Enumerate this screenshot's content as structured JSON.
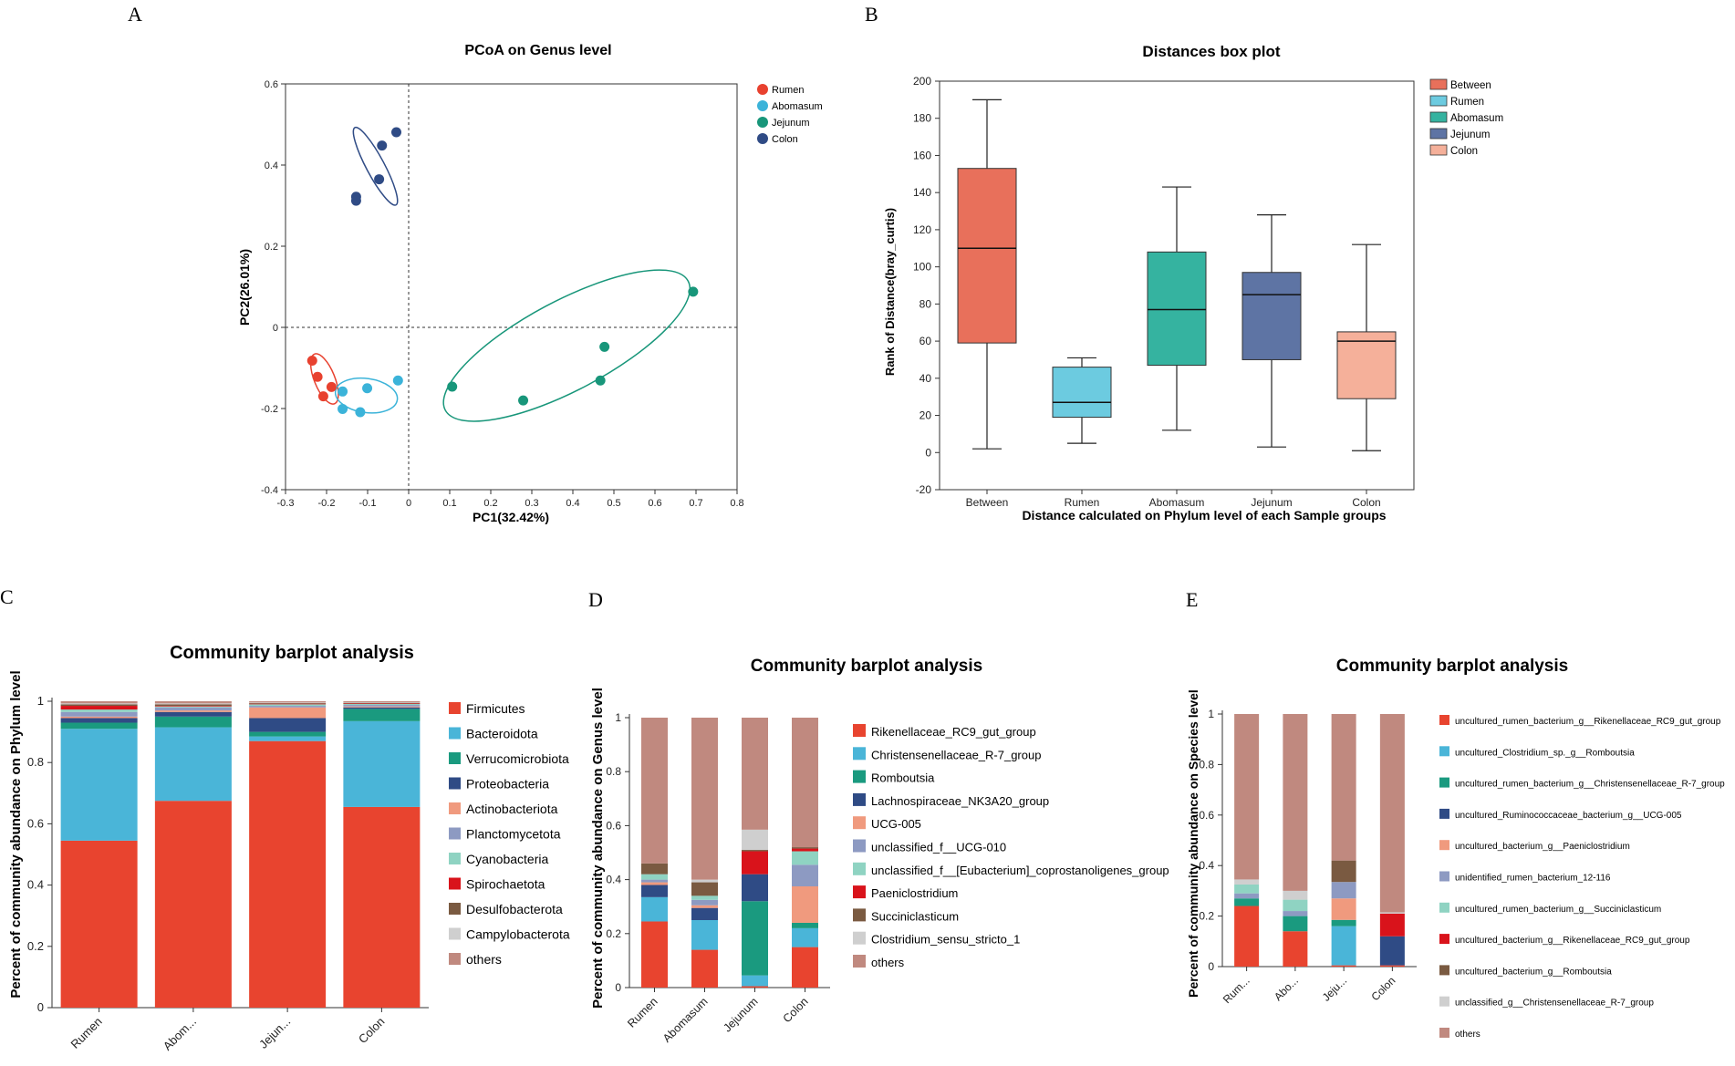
{
  "panels": {
    "A": {
      "letter": "A",
      "chart_data": {
        "type": "scatter",
        "title": "PCoA on Genus level",
        "xlabel": "PC1(32.42%)",
        "ylabel": "PC2(26.01%)",
        "xlim": [
          -0.3,
          0.8
        ],
        "ylim": [
          -0.4,
          0.6
        ],
        "xticks": [
          "-0.3",
          "-0.2",
          "-0.1",
          "0",
          "0.1",
          "0.2",
          "0.3",
          "0.4",
          "0.5",
          "0.6",
          "0.7",
          "0.8"
        ],
        "yticks": [
          "-0.4",
          "-0.2",
          "0",
          "0.2",
          "0.4",
          "0.6"
        ],
        "legend_position": "top-right",
        "series": [
          {
            "name": "Rumen",
            "color": "#e8412f",
            "points": [
              [
                -0.235,
                -0.082
              ],
              [
                -0.222,
                -0.122
              ],
              [
                -0.188,
                -0.147
              ],
              [
                -0.208,
                -0.17
              ]
            ]
          },
          {
            "name": "Abomasum",
            "color": "#3bb3d9",
            "points": [
              [
                -0.161,
                -0.158
              ],
              [
                -0.101,
                -0.15
              ],
              [
                -0.026,
                -0.131
              ],
              [
                -0.161,
                -0.201
              ],
              [
                -0.118,
                -0.209
              ]
            ]
          },
          {
            "name": "Jejunum",
            "color": "#18967a",
            "points": [
              [
                0.693,
                0.088
              ],
              [
                0.477,
                -0.048
              ],
              [
                0.467,
                -0.131
              ],
              [
                0.279,
                -0.18
              ],
              [
                0.106,
                -0.146
              ]
            ]
          },
          {
            "name": "Colon",
            "color": "#2f4b85",
            "points": [
              [
                -0.03,
                0.481
              ],
              [
                -0.065,
                0.448
              ],
              [
                -0.072,
                0.365
              ],
              [
                -0.128,
                0.322
              ],
              [
                -0.128,
                0.312
              ]
            ]
          }
        ],
        "ellipses": [
          {
            "group": "Rumen",
            "center": [
              -0.205,
              -0.127
            ],
            "radii": [
              0.025,
              0.066
            ],
            "angle": -22
          },
          {
            "group": "Abomasum",
            "center": [
              -0.103,
              -0.168
            ],
            "radii": [
              0.076,
              0.042
            ],
            "angle": 8
          },
          {
            "group": "Jejunum",
            "center": [
              0.385,
              -0.045
            ],
            "radii": [
              0.335,
              0.11
            ],
            "angle": -28
          },
          {
            "group": "Colon",
            "center": [
              -0.081,
              0.397
            ],
            "radii": [
              0.022,
              0.108
            ],
            "angle": -28
          }
        ]
      }
    },
    "B": {
      "letter": "B",
      "chart_data": {
        "type": "box",
        "title": "Distances box plot",
        "xlabel": "Distance calculated on Phylum level of each Sample groups",
        "ylabel": "Rank of Distance(bray_curtis)",
        "ylim": [
          -20,
          200
        ],
        "yticks": [
          "-20",
          "0",
          "20",
          "40",
          "60",
          "80",
          "100",
          "120",
          "140",
          "160",
          "180",
          "200"
        ],
        "categories": [
          "Between",
          "Rumen",
          "Abomasum",
          "Jejunum",
          "Colon"
        ],
        "legend_position": "top-right",
        "boxes": [
          {
            "name": "Between",
            "color": "#e8705b",
            "min": 2,
            "q1": 59,
            "median": 110,
            "q3": 153,
            "max": 190
          },
          {
            "name": "Rumen",
            "color": "#6ccbe0",
            "min": 5,
            "q1": 19,
            "median": 27,
            "q3": 46,
            "max": 51
          },
          {
            "name": "Abomasum",
            "color": "#35b3a0",
            "min": 12,
            "q1": 47,
            "median": 77,
            "q3": 108,
            "max": 143
          },
          {
            "name": "Jejunum",
            "color": "#5e74a4",
            "min": 3,
            "q1": 50,
            "median": 85,
            "q3": 97,
            "max": 128
          },
          {
            "name": "Colon",
            "color": "#f5b09a",
            "min": 1,
            "q1": 29,
            "median": 60,
            "q3": 65,
            "max": 112
          }
        ]
      }
    },
    "C": {
      "letter": "C",
      "chart_data": {
        "type": "bar",
        "stacked": true,
        "title": "Community barplot analysis",
        "ylabel": "Percent of community abundance on Phylum level",
        "ylim": [
          0,
          1
        ],
        "yticks": [
          "0",
          "0.2",
          "0.4",
          "0.6",
          "0.8",
          "1"
        ],
        "categories": [
          "Rumen",
          "Abom...",
          "Jejun...",
          "Colon"
        ],
        "legend_position": "right",
        "series": [
          {
            "name": "Firmicutes",
            "color": "#e8442f",
            "values": [
              0.545,
              0.675,
              0.87,
              0.655
            ]
          },
          {
            "name": "Bacteroidota",
            "color": "#4ab5d8",
            "values": [
              0.365,
              0.24,
              0.015,
              0.28
            ]
          },
          {
            "name": "Verrucomicrobiota",
            "color": "#1a9a7f",
            "values": [
              0.02,
              0.035,
              0.015,
              0.04
            ]
          },
          {
            "name": "Proteobacteria",
            "color": "#2f4b85",
            "values": [
              0.015,
              0.015,
              0.045,
              0.005
            ]
          },
          {
            "name": "Actinobacteriota",
            "color": "#f09a7e",
            "values": [
              0.005,
              0.005,
              0.035,
              0.003
            ]
          },
          {
            "name": "Planctomycetota",
            "color": "#8d9ac2",
            "values": [
              0.015,
              0.01,
              0.005,
              0.005
            ]
          },
          {
            "name": "Cyanobacteria",
            "color": "#8fd3c2",
            "values": [
              0.008,
              0.003,
              0.005,
              0.003
            ]
          },
          {
            "name": "Spirochaetota",
            "color": "#d9131b",
            "values": [
              0.012,
              0.002,
              0.002,
              0.002
            ]
          },
          {
            "name": "Desulfobacterota",
            "color": "#7a5a41",
            "values": [
              0.005,
              0.005,
              0.002,
              0.002
            ]
          },
          {
            "name": "Campylobacterota",
            "color": "#cfcfcf",
            "values": [
              0.003,
              0.003,
              0.002,
              0.002
            ]
          },
          {
            "name": "others",
            "color": "#c0897f",
            "values": [
              0.007,
              0.007,
              0.004,
              0.003
            ]
          }
        ]
      }
    },
    "D": {
      "letter": "D",
      "chart_data": {
        "type": "bar",
        "stacked": true,
        "title": "Community barplot analysis",
        "ylabel": "Percent of community abundance on Genus level",
        "ylim": [
          0,
          1
        ],
        "yticks": [
          "0",
          "0.2",
          "0.4",
          "0.6",
          "0.8",
          "1"
        ],
        "categories": [
          "Rumen",
          "Abomasum",
          "Jejunum",
          "Colon"
        ],
        "legend_position": "right",
        "series": [
          {
            "name": "Rikenellaceae_RC9_gut_group",
            "color": "#e8442f",
            "values": [
              0.245,
              0.14,
              0.005,
              0.15
            ]
          },
          {
            "name": "Christensenellaceae_R-7_group",
            "color": "#4ab5d8",
            "values": [
              0.09,
              0.11,
              0.04,
              0.07
            ]
          },
          {
            "name": "Romboutsia",
            "color": "#1a9a7f",
            "values": [
              0.0,
              0.0,
              0.275,
              0.02
            ]
          },
          {
            "name": "Lachnospiraceae_NK3A20_group",
            "color": "#2f4b85",
            "values": [
              0.045,
              0.045,
              0.1,
              0.0
            ]
          },
          {
            "name": "UCG-005",
            "color": "#f09a7e",
            "values": [
              0.01,
              0.01,
              0.0,
              0.135
            ]
          },
          {
            "name": "unclassified_f__UCG-010",
            "color": "#8d9ac2",
            "values": [
              0.01,
              0.02,
              0.0,
              0.08
            ]
          },
          {
            "name": "unclassified_f__[Eubacterium]_coprostanoligenes_group",
            "color": "#8fd3c2",
            "values": [
              0.02,
              0.015,
              0.0,
              0.05
            ]
          },
          {
            "name": "Paeniclostridium",
            "color": "#d9131b",
            "values": [
              0.0,
              0.0,
              0.085,
              0.01
            ]
          },
          {
            "name": "Succiniclasticum",
            "color": "#7a5a41",
            "values": [
              0.04,
              0.05,
              0.005,
              0.005
            ]
          },
          {
            "name": "Clostridium_sensu_stricto_1",
            "color": "#cfcfcf",
            "values": [
              0.0,
              0.01,
              0.075,
              0.0
            ]
          },
          {
            "name": "others",
            "color": "#c0897f",
            "values": [
              0.54,
              0.6,
              0.415,
              0.48
            ]
          }
        ]
      }
    },
    "E": {
      "letter": "E",
      "chart_data": {
        "type": "bar",
        "stacked": true,
        "title": "Community barplot analysis",
        "ylabel": "Percent of community abundance on Species level",
        "ylim": [
          0,
          1
        ],
        "yticks": [
          "0",
          "0.2",
          "0.4",
          "0.6",
          "0.8",
          "1"
        ],
        "categories": [
          "Rum...",
          "Abo...",
          "Jeju...",
          "Colon"
        ],
        "legend_position": "right",
        "series": [
          {
            "name": "uncultured_rumen_bacterium_g__Rikenellaceae_RC9_gut_group",
            "color": "#e8442f",
            "values": [
              0.24,
              0.14,
              0.005,
              0.005
            ]
          },
          {
            "name": "uncultured_Clostridium_sp._g__Romboutsia",
            "color": "#4ab5d8",
            "values": [
              0.0,
              0.0,
              0.155,
              0.0
            ]
          },
          {
            "name": "uncultured_rumen_bacterium_g__Christensenellaceae_R-7_group",
            "color": "#1a9a7f",
            "values": [
              0.03,
              0.06,
              0.025,
              0.0
            ]
          },
          {
            "name": "uncultured_Ruminococcaceae_bacterium_g__UCG-005",
            "color": "#2f4b85",
            "values": [
              0.0,
              0.0,
              0.0,
              0.115
            ]
          },
          {
            "name": "uncultured_bacterium_g__Paeniclostridium",
            "color": "#f09a7e",
            "values": [
              0.0,
              0.0,
              0.085,
              0.0
            ]
          },
          {
            "name": "unidentified_rumen_bacterium_12-116",
            "color": "#8d9ac2",
            "values": [
              0.02,
              0.02,
              0.065,
              0.0
            ]
          },
          {
            "name": "uncultured_rumen_bacterium_g__Succiniclasticum",
            "color": "#8fd3c2",
            "values": [
              0.035,
              0.045,
              0.0,
              0.0
            ]
          },
          {
            "name": "uncultured_bacterium_g__Rikenellaceae_RC9_gut_group",
            "color": "#d9131b",
            "values": [
              0.0,
              0.0,
              0.0,
              0.09
            ]
          },
          {
            "name": "uncultured_bacterium_g__Romboutsia",
            "color": "#7a5a41",
            "values": [
              0.0,
              0.0,
              0.085,
              0.0
            ]
          },
          {
            "name": "unclassified_g__Christensenellaceae_R-7_group",
            "color": "#cfcfcf",
            "values": [
              0.02,
              0.035,
              0.0,
              0.005
            ]
          },
          {
            "name": "others",
            "color": "#c0897f",
            "values": [
              0.655,
              0.7,
              0.58,
              0.785
            ]
          }
        ]
      }
    }
  }
}
